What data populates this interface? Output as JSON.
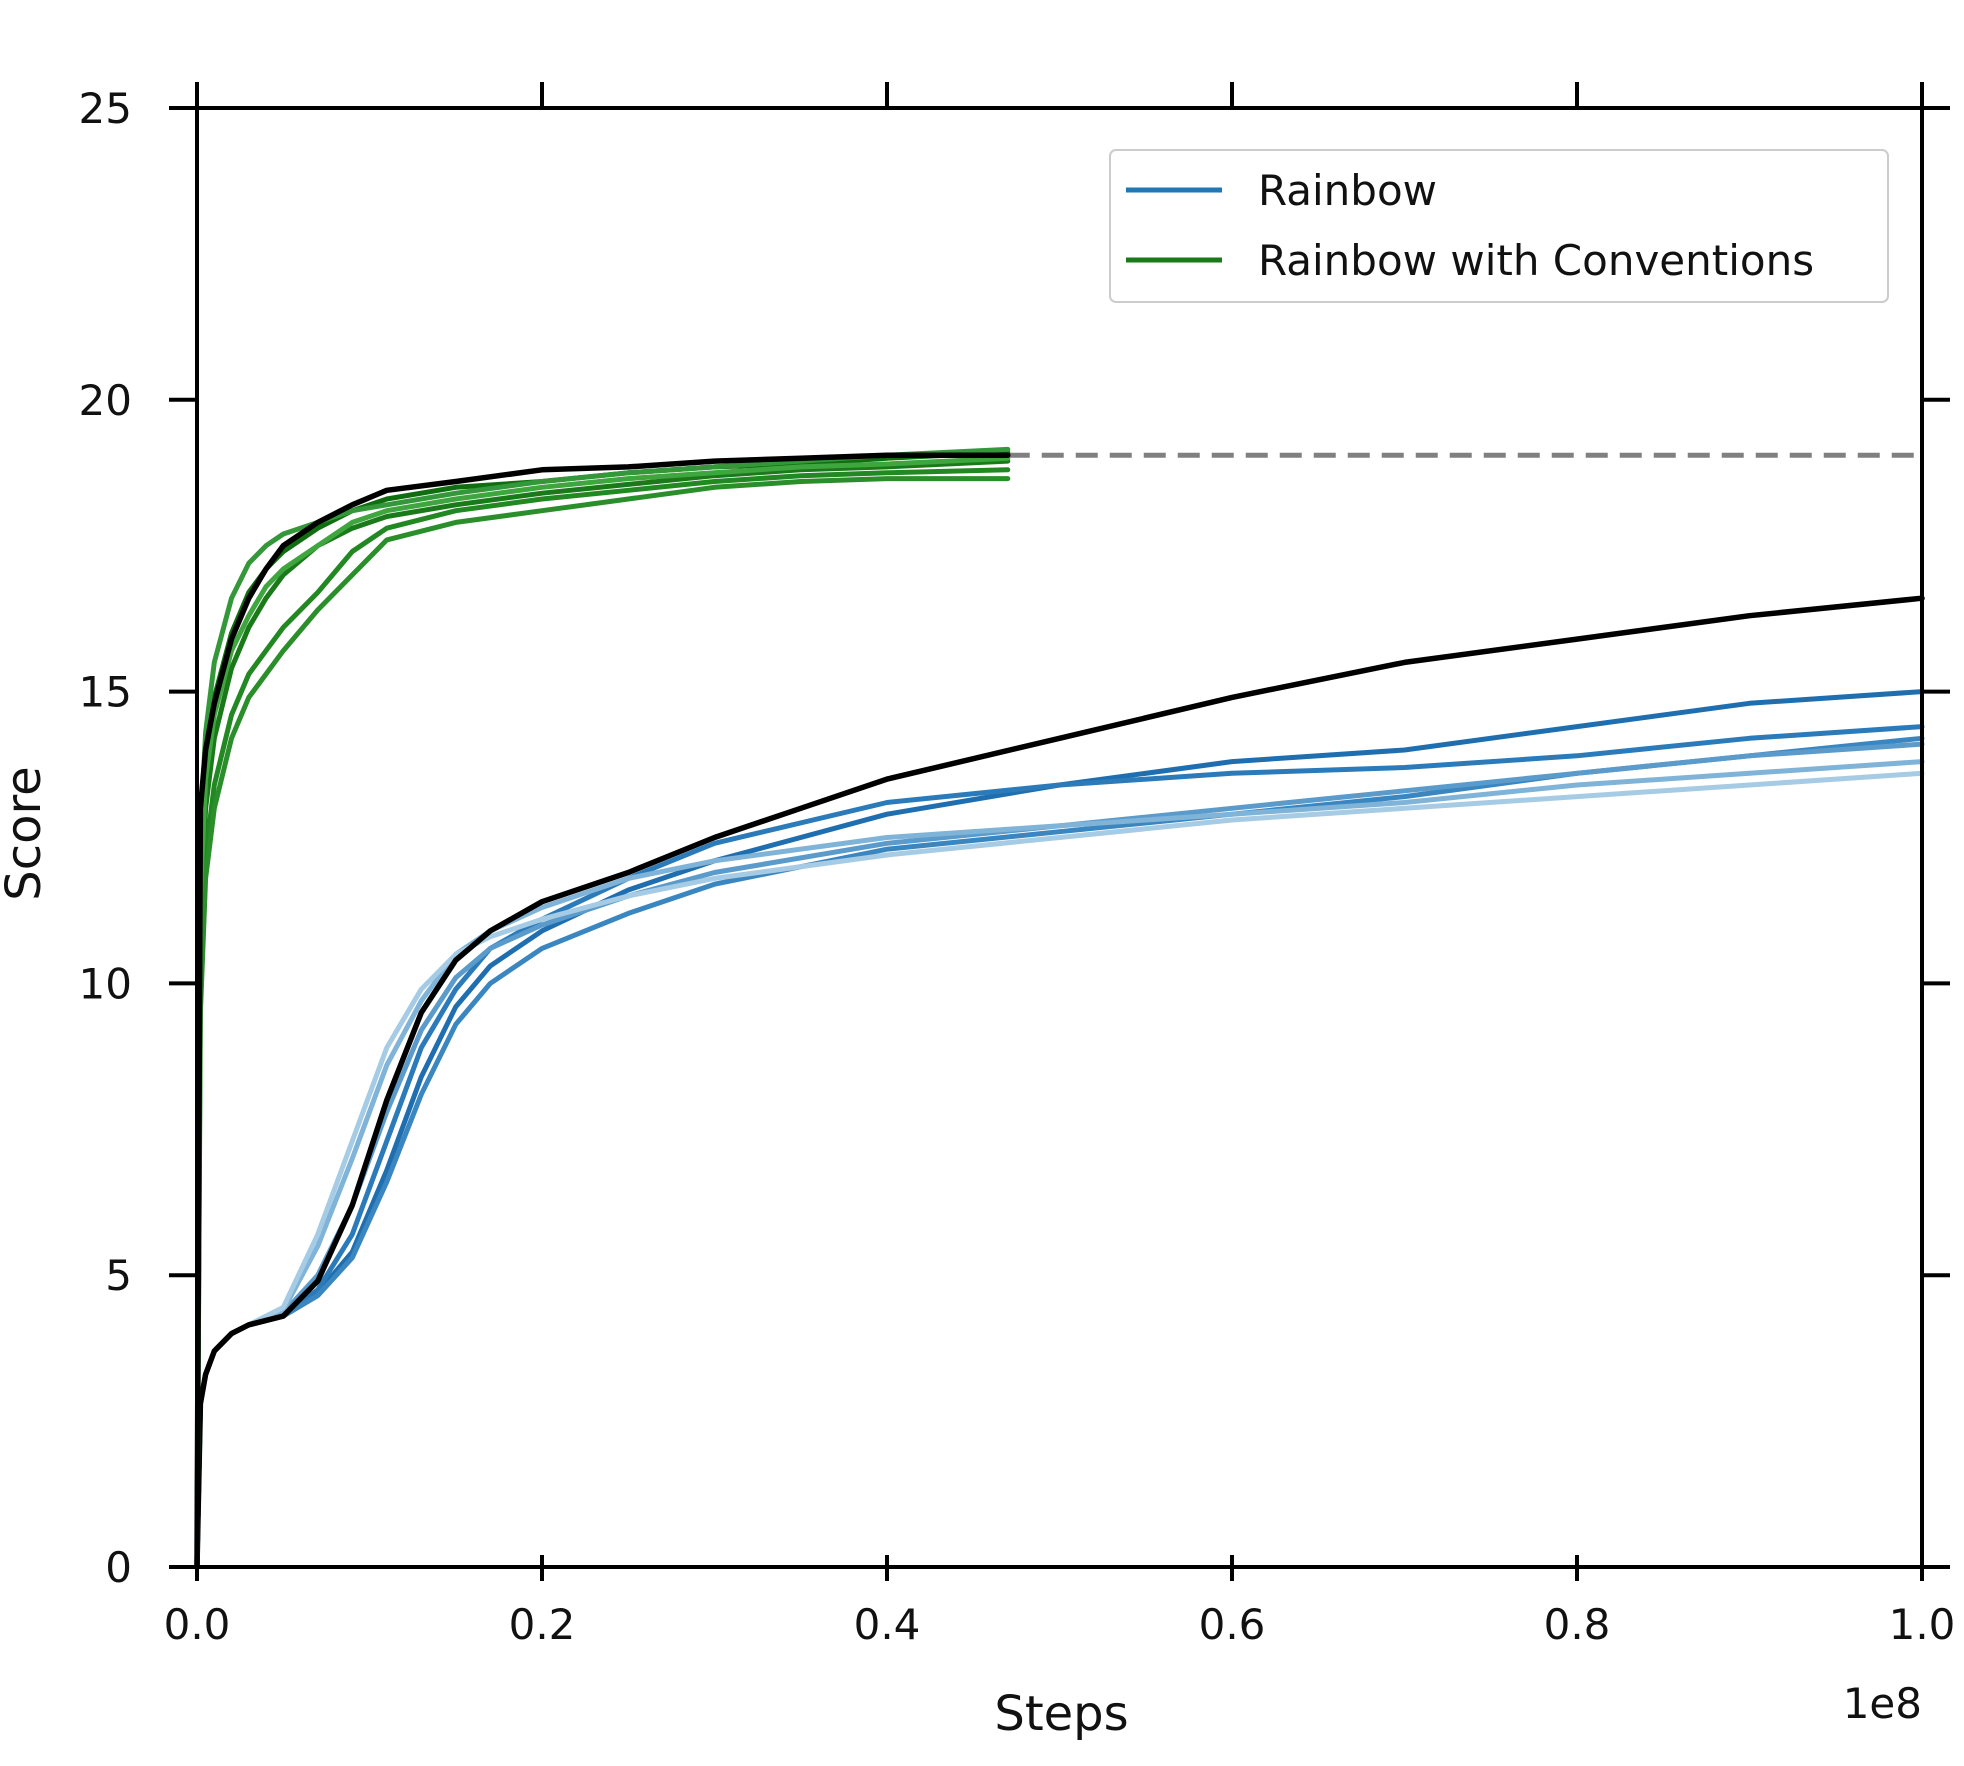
{
  "chart_data": {
    "type": "line",
    "title": "",
    "xlabel": "Steps",
    "ylabel": "Score",
    "x_multiplier_label": "1e8",
    "xlim": [
      0.0,
      1.0
    ],
    "ylim": [
      0,
      25
    ],
    "xticks": [
      0.0,
      0.2,
      0.4,
      0.6,
      0.8,
      1.0
    ],
    "xtick_labels": [
      "0.0",
      "0.2",
      "0.4",
      "0.6",
      "0.8",
      "1.0"
    ],
    "yticks": [
      0,
      5,
      10,
      15,
      20,
      25
    ],
    "ytick_labels": [
      "0",
      "5",
      "10",
      "15",
      "20",
      "25"
    ],
    "grid": false,
    "legend": {
      "placement": "top-right",
      "entries": [
        {
          "label": "Rainbow",
          "color": "#1f77b4"
        },
        {
          "label": "Rainbow with Conventions",
          "color": "#1a7a1a"
        }
      ]
    },
    "colors": {
      "rainbow": [
        "#1f6fb0",
        "#2b7bba",
        "#3a86c0",
        "#5a9bcc",
        "#7fb3d8",
        "#a6cbe4"
      ],
      "conventions": [
        "#0f6e0f",
        "#1a7a1a",
        "#228822",
        "#2a8f2a",
        "#34983a",
        "#3fa63f"
      ],
      "mean": "#000000",
      "reference": "#808080"
    },
    "reference_line": {
      "y": 19.05,
      "x_start": 0.47,
      "x_end": 1.0,
      "style": "dashed"
    },
    "series": [
      {
        "name": "Rainbow run 1",
        "group": "rainbow",
        "x": [
          0,
          0.002,
          0.005,
          0.01,
          0.02,
          0.03,
          0.05,
          0.07,
          0.09,
          0.11,
          0.13,
          0.15,
          0.17,
          0.2,
          0.25,
          0.3,
          0.4,
          0.5,
          0.6,
          0.7,
          0.8,
          0.9,
          1.0
        ],
        "y": [
          0,
          2.8,
          3.3,
          3.7,
          4.0,
          4.15,
          4.3,
          4.7,
          5.4,
          6.8,
          8.4,
          9.6,
          10.3,
          10.9,
          11.6,
          12.1,
          12.9,
          13.4,
          13.8,
          14.0,
          14.4,
          14.8,
          15.0
        ]
      },
      {
        "name": "Rainbow run 2",
        "group": "rainbow",
        "x": [
          0,
          0.002,
          0.005,
          0.01,
          0.02,
          0.03,
          0.05,
          0.07,
          0.09,
          0.11,
          0.13,
          0.15,
          0.17,
          0.2,
          0.25,
          0.3,
          0.4,
          0.5,
          0.6,
          0.7,
          0.8,
          0.9,
          1.0
        ],
        "y": [
          0,
          2.8,
          3.3,
          3.7,
          4.0,
          4.15,
          4.3,
          4.75,
          5.7,
          7.3,
          8.9,
          9.9,
          10.6,
          11.1,
          11.8,
          12.4,
          13.1,
          13.4,
          13.6,
          13.7,
          13.9,
          14.2,
          14.4
        ]
      },
      {
        "name": "Rainbow run 3",
        "group": "rainbow",
        "x": [
          0,
          0.002,
          0.005,
          0.01,
          0.02,
          0.03,
          0.05,
          0.07,
          0.09,
          0.11,
          0.13,
          0.15,
          0.17,
          0.2,
          0.25,
          0.3,
          0.4,
          0.5,
          0.6,
          0.7,
          0.8,
          0.9,
          1.0
        ],
        "y": [
          0,
          2.8,
          3.3,
          3.7,
          4.0,
          4.15,
          4.3,
          4.65,
          5.3,
          6.6,
          8.1,
          9.3,
          10.0,
          10.6,
          11.2,
          11.7,
          12.3,
          12.6,
          12.9,
          13.2,
          13.6,
          13.9,
          14.2
        ]
      },
      {
        "name": "Rainbow run 4",
        "group": "rainbow",
        "x": [
          0,
          0.002,
          0.005,
          0.01,
          0.02,
          0.03,
          0.05,
          0.07,
          0.09,
          0.11,
          0.13,
          0.15,
          0.17,
          0.2,
          0.25,
          0.3,
          0.4,
          0.5,
          0.6,
          0.7,
          0.8,
          0.9,
          1.0
        ],
        "y": [
          0,
          2.8,
          3.3,
          3.7,
          4.0,
          4.15,
          4.35,
          5.0,
          6.2,
          7.8,
          9.2,
          10.1,
          10.6,
          11.0,
          11.5,
          11.9,
          12.4,
          12.7,
          13.0,
          13.3,
          13.6,
          13.9,
          14.1
        ]
      },
      {
        "name": "Rainbow run 5",
        "group": "rainbow",
        "x": [
          0,
          0.002,
          0.005,
          0.01,
          0.02,
          0.03,
          0.05,
          0.07,
          0.09,
          0.11,
          0.13,
          0.15,
          0.17,
          0.2,
          0.25,
          0.3,
          0.4,
          0.5,
          0.6,
          0.7,
          0.8,
          0.9,
          1.0
        ],
        "y": [
          0,
          2.8,
          3.3,
          3.7,
          4.0,
          4.15,
          4.4,
          5.5,
          7.0,
          8.6,
          9.7,
          10.5,
          10.9,
          11.3,
          11.8,
          12.1,
          12.5,
          12.7,
          12.9,
          13.1,
          13.4,
          13.6,
          13.8
        ]
      },
      {
        "name": "Rainbow run 6",
        "group": "rainbow",
        "x": [
          0,
          0.002,
          0.005,
          0.01,
          0.02,
          0.03,
          0.05,
          0.07,
          0.09,
          0.11,
          0.13,
          0.15,
          0.17,
          0.2,
          0.25,
          0.3,
          0.4,
          0.5,
          0.6,
          0.7,
          0.8,
          0.9,
          1.0
        ],
        "y": [
          0,
          2.8,
          3.3,
          3.7,
          4.0,
          4.15,
          4.45,
          5.7,
          7.3,
          8.9,
          9.9,
          10.5,
          10.8,
          11.1,
          11.5,
          11.8,
          12.2,
          12.5,
          12.8,
          13.0,
          13.2,
          13.4,
          13.6
        ]
      },
      {
        "name": "Rainbow mean",
        "group": "rainbow_mean",
        "x": [
          0,
          0.002,
          0.005,
          0.01,
          0.02,
          0.03,
          0.05,
          0.07,
          0.09,
          0.11,
          0.13,
          0.15,
          0.17,
          0.2,
          0.25,
          0.3,
          0.35,
          0.4,
          0.5,
          0.6,
          0.7,
          0.8,
          0.9,
          1.0
        ],
        "y": [
          0,
          2.8,
          3.3,
          3.7,
          4.0,
          4.15,
          4.3,
          4.9,
          6.2,
          8.0,
          9.5,
          10.4,
          10.9,
          11.4,
          11.9,
          12.5,
          13.0,
          13.5,
          14.2,
          14.9,
          15.5,
          15.9,
          16.3,
          16.6
        ]
      },
      {
        "name": "Conventions run 1",
        "group": "conventions",
        "x": [
          0,
          0.002,
          0.005,
          0.01,
          0.02,
          0.03,
          0.04,
          0.05,
          0.07,
          0.09,
          0.11,
          0.15,
          0.2,
          0.25,
          0.3,
          0.35,
          0.4,
          0.47
        ],
        "y": [
          0,
          12.0,
          13.8,
          14.9,
          16.0,
          16.7,
          17.1,
          17.4,
          17.8,
          18.1,
          18.3,
          18.5,
          18.6,
          18.75,
          18.85,
          18.9,
          19.0,
          19.1
        ]
      },
      {
        "name": "Conventions run 2",
        "group": "conventions",
        "x": [
          0,
          0.002,
          0.005,
          0.01,
          0.02,
          0.03,
          0.04,
          0.05,
          0.07,
          0.09,
          0.11,
          0.15,
          0.2,
          0.25,
          0.3,
          0.35,
          0.4,
          0.47
        ],
        "y": [
          0,
          11.0,
          13.0,
          14.2,
          15.4,
          16.1,
          16.6,
          17.0,
          17.5,
          17.8,
          18.0,
          18.2,
          18.4,
          18.55,
          18.7,
          18.8,
          18.85,
          18.95
        ]
      },
      {
        "name": "Conventions run 3",
        "group": "conventions",
        "x": [
          0,
          0.002,
          0.005,
          0.01,
          0.02,
          0.03,
          0.04,
          0.05,
          0.07,
          0.09,
          0.11,
          0.15,
          0.2,
          0.25,
          0.3,
          0.35,
          0.4,
          0.47
        ],
        "y": [
          0,
          10.0,
          12.2,
          13.4,
          14.6,
          15.3,
          15.7,
          16.1,
          16.7,
          17.4,
          17.8,
          18.1,
          18.3,
          18.45,
          18.6,
          18.7,
          18.75,
          18.8
        ]
      },
      {
        "name": "Conventions run 4",
        "group": "conventions",
        "x": [
          0,
          0.002,
          0.005,
          0.01,
          0.02,
          0.03,
          0.04,
          0.05,
          0.07,
          0.09,
          0.11,
          0.15,
          0.2,
          0.25,
          0.3,
          0.35,
          0.4,
          0.47
        ],
        "y": [
          0,
          9.5,
          11.8,
          13.0,
          14.2,
          14.9,
          15.3,
          15.7,
          16.4,
          17.0,
          17.6,
          17.9,
          18.1,
          18.3,
          18.5,
          18.6,
          18.65,
          18.65
        ]
      },
      {
        "name": "Conventions run 5",
        "group": "conventions",
        "x": [
          0,
          0.002,
          0.005,
          0.01,
          0.02,
          0.03,
          0.04,
          0.05,
          0.07,
          0.09,
          0.11,
          0.15,
          0.2,
          0.25,
          0.3,
          0.35,
          0.4,
          0.47
        ],
        "y": [
          0,
          12.5,
          14.3,
          15.5,
          16.6,
          17.2,
          17.5,
          17.7,
          17.9,
          18.1,
          18.2,
          18.4,
          18.6,
          18.75,
          18.85,
          18.95,
          19.05,
          19.15
        ]
      },
      {
        "name": "Conventions run 6",
        "group": "conventions",
        "x": [
          0,
          0.002,
          0.005,
          0.01,
          0.02,
          0.03,
          0.04,
          0.05,
          0.07,
          0.09,
          0.11,
          0.15,
          0.2,
          0.25,
          0.3,
          0.35,
          0.4,
          0.47
        ],
        "y": [
          0,
          11.5,
          13.5,
          14.6,
          15.7,
          16.3,
          16.8,
          17.1,
          17.5,
          17.9,
          18.1,
          18.3,
          18.5,
          18.65,
          18.75,
          18.85,
          18.9,
          19.0
        ]
      },
      {
        "name": "Conventions mean",
        "group": "conventions_mean",
        "x": [
          0,
          0.002,
          0.005,
          0.01,
          0.02,
          0.03,
          0.04,
          0.05,
          0.07,
          0.09,
          0.11,
          0.15,
          0.2,
          0.25,
          0.3,
          0.35,
          0.4,
          0.47
        ],
        "y": [
          0,
          13.0,
          14.0,
          14.8,
          15.9,
          16.6,
          17.1,
          17.5,
          17.9,
          18.2,
          18.45,
          18.6,
          18.8,
          18.85,
          18.95,
          19.0,
          19.05,
          19.05
        ]
      }
    ]
  }
}
